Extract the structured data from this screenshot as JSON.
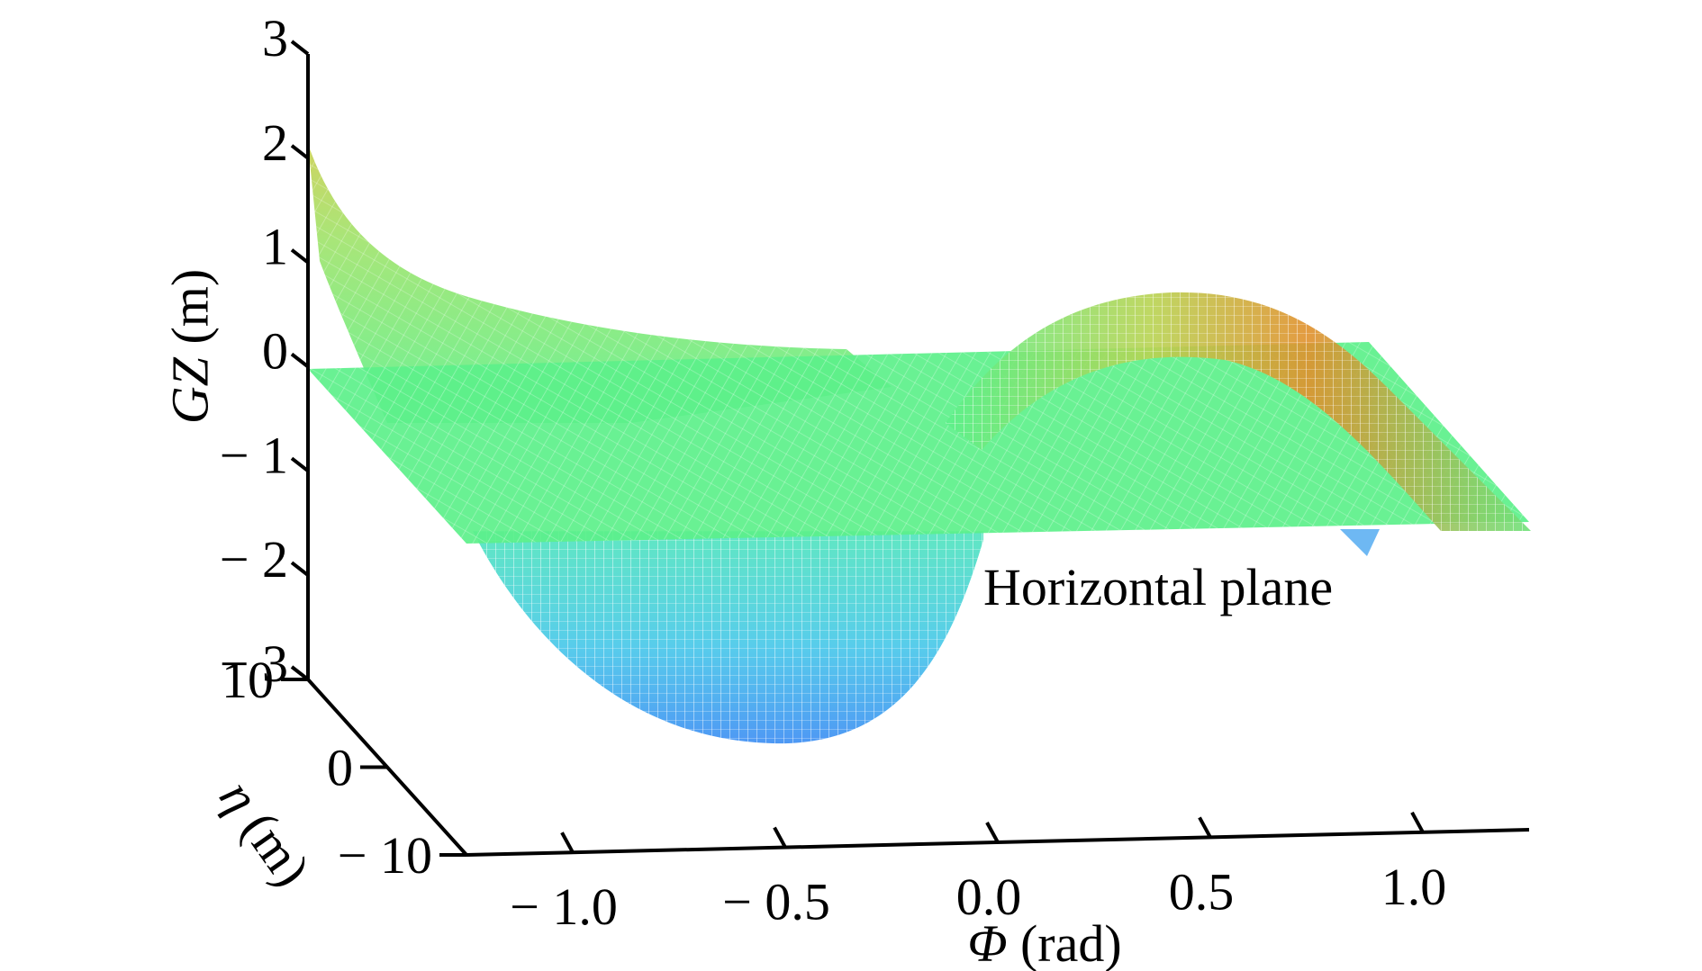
{
  "chart_data": {
    "type": "surface3d",
    "title": "",
    "axes": {
      "x": {
        "label": "Φ (rad)",
        "label_symbol": "Φ",
        "label_unit": "(rad)",
        "range": [
          -1.25,
          1.25
        ],
        "ticks": [
          -1.0,
          -0.5,
          0.0,
          0.5,
          1.0
        ],
        "tick_labels": [
          "− 1.0",
          "− 0.5",
          "0.0",
          "0.5",
          "1.0"
        ]
      },
      "y": {
        "label": "η (m)",
        "label_symbol": "η",
        "label_unit": "(m)",
        "range": [
          -10,
          10
        ],
        "ticks": [
          -10,
          0,
          10
        ],
        "tick_labels": [
          "− 10",
          "0",
          "10"
        ]
      },
      "z": {
        "label": "GZ (m)",
        "label_symbol": "GZ",
        "label_unit": "(m)",
        "range": [
          -3,
          3
        ],
        "ticks": [
          -3,
          -2,
          -1,
          0,
          1,
          2,
          3
        ],
        "tick_labels": [
          "− 3",
          "− 2",
          "− 1",
          "0",
          "1",
          "2",
          "3"
        ]
      }
    },
    "series": [
      {
        "surface": "GZ",
        "style": "mesh",
        "colormap": [
          "#2f7ff0",
          "#3fc7e8",
          "#55f08c",
          "#c8d24b",
          "#e08a28"
        ],
        "approx_values": [
          {
            "phi": -1.25,
            "eta": 10,
            "gz": 2.0
          },
          {
            "phi": -0.5,
            "eta": 0,
            "gz": -2.6
          },
          {
            "phi": 0.0,
            "eta": 0,
            "gz": 0.0
          },
          {
            "phi": 0.5,
            "eta": 0,
            "gz": 0.8
          },
          {
            "phi": 1.25,
            "eta": 0,
            "gz": -1.5
          }
        ]
      },
      {
        "surface": "plane",
        "gz": 0,
        "color": "#5cf08a"
      }
    ],
    "annotations": [
      {
        "text": "Horizontal plane"
      }
    ],
    "grid": false,
    "legend": "none"
  }
}
